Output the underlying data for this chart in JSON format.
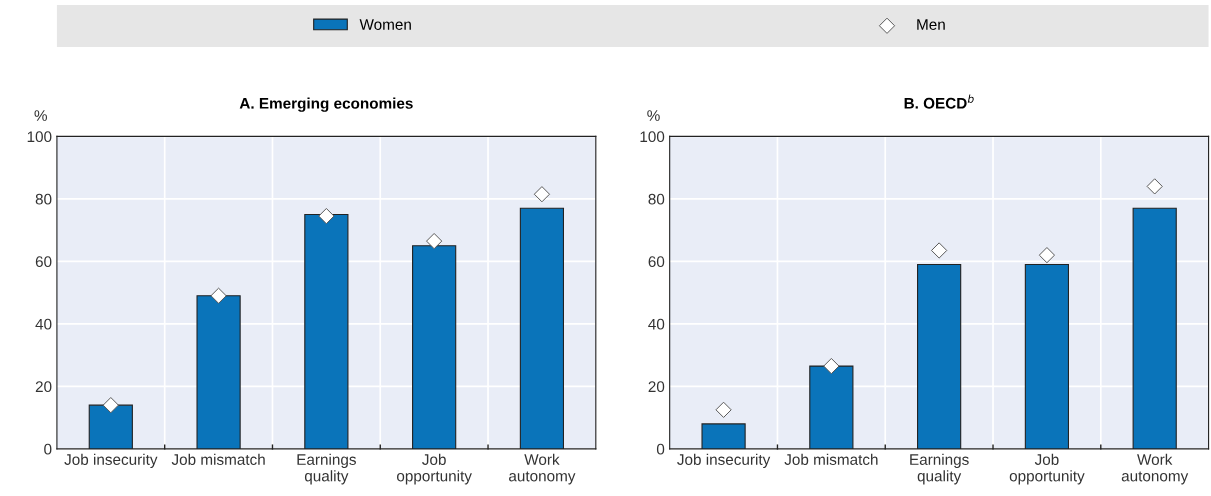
{
  "chart_data": [
    {
      "type": "bar",
      "title": "A. Emerging economies",
      "ylabel": "%",
      "categories": [
        "Job insecurity",
        "Job mismatch",
        "Earnings\nquality",
        "Job\nopportunity",
        "Work\nautonomy"
      ],
      "series": [
        {
          "name": "Women",
          "color": "#0a74ba",
          "values": [
            14,
            49,
            75,
            65,
            77
          ]
        },
        {
          "name": "Men",
          "type": "scatter",
          "marker": "diamond",
          "color": "#ffffff",
          "values": [
            14,
            49,
            74.5,
            66.5,
            81.5
          ]
        }
      ],
      "ylim": [
        0,
        100
      ],
      "yticks": [
        0,
        20,
        40,
        60,
        80,
        100
      ],
      "grid": true,
      "legend": "top"
    },
    {
      "type": "bar",
      "title": "B. OECD$^{b}$",
      "ylabel": "%",
      "categories": [
        "Job insecurity",
        "Job mismatch",
        "Earnings\nquality",
        "Job\nopportunity",
        "Work\nautonomy"
      ],
      "series": [
        {
          "color": "#0a74ba",
          "values": [
            8,
            26.5,
            59,
            59,
            77
          ]
        },
        {
          "type": "scatter",
          "marker": "diamond",
          "color": "#ffffff",
          "values": [
            12.5,
            26.5,
            63.5,
            62,
            84
          ]
        }
      ],
      "ylim": [
        0,
        100
      ],
      "yticks": [
        0,
        20,
        40,
        60,
        80,
        100
      ],
      "grid": true
    }
  ]
}
